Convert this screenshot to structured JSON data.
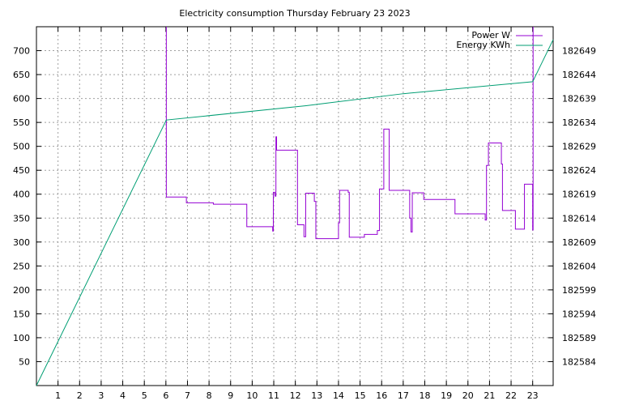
{
  "chart_data": {
    "type": "line",
    "title": "Electricity consumption Thursday February 23 2023",
    "xlim": [
      0,
      23.95
    ],
    "x_ticks": [
      "1",
      "2",
      "3",
      "4",
      "5",
      "6",
      "7",
      "8",
      "9",
      "10",
      "11",
      "12",
      "13",
      "14",
      "15",
      "16",
      "17",
      "18",
      "19",
      "20",
      "21",
      "22",
      "23"
    ],
    "y_left": {
      "lim": [
        0,
        750
      ],
      "ticks": [
        "50",
        "100",
        "150",
        "200",
        "250",
        "300",
        "350",
        "400",
        "450",
        "500",
        "550",
        "600",
        "650",
        "700"
      ]
    },
    "y_right": {
      "lim": [
        182579,
        182654
      ],
      "ticks": [
        "182584",
        "182589",
        "182594",
        "182599",
        "182604",
        "182609",
        "182614",
        "182619",
        "182624",
        "182629",
        "182634",
        "182639",
        "182644",
        "182649"
      ]
    },
    "grid": true,
    "legend": {
      "placement": "top-right",
      "entries": [
        "Power W",
        "Energy KWh"
      ]
    },
    "colors": {
      "power": "#9400d3",
      "energy": "#009e73",
      "grid": "#a0a0a0"
    },
    "series": [
      {
        "name": "Power W",
        "axis": "left",
        "points": [
          [
            6.02,
            750
          ],
          [
            6.02,
            394
          ],
          [
            6.95,
            394
          ],
          [
            6.95,
            382
          ],
          [
            8.2,
            382
          ],
          [
            8.2,
            379
          ],
          [
            9.75,
            379
          ],
          [
            9.75,
            332
          ],
          [
            10.95,
            332
          ],
          [
            10.95,
            323
          ],
          [
            10.98,
            323
          ],
          [
            10.98,
            404
          ],
          [
            11.05,
            404
          ],
          [
            11.05,
            396
          ],
          [
            11.1,
            396
          ],
          [
            11.1,
            520
          ],
          [
            11.13,
            520
          ],
          [
            11.13,
            492
          ],
          [
            12.1,
            492
          ],
          [
            12.1,
            336
          ],
          [
            12.4,
            336
          ],
          [
            12.4,
            311
          ],
          [
            12.48,
            311
          ],
          [
            12.48,
            402
          ],
          [
            12.88,
            402
          ],
          [
            12.88,
            385
          ],
          [
            12.95,
            385
          ],
          [
            12.95,
            307
          ],
          [
            14.0,
            307
          ],
          [
            14.0,
            340
          ],
          [
            14.05,
            340
          ],
          [
            14.05,
            408
          ],
          [
            14.45,
            408
          ],
          [
            14.45,
            404
          ],
          [
            14.5,
            404
          ],
          [
            14.5,
            310
          ],
          [
            15.2,
            310
          ],
          [
            15.2,
            316
          ],
          [
            15.8,
            316
          ],
          [
            15.8,
            324
          ],
          [
            15.9,
            324
          ],
          [
            15.9,
            411
          ],
          [
            16.1,
            411
          ],
          [
            16.1,
            536
          ],
          [
            16.35,
            536
          ],
          [
            16.35,
            408
          ],
          [
            17.3,
            408
          ],
          [
            17.3,
            350
          ],
          [
            17.36,
            350
          ],
          [
            17.36,
            321
          ],
          [
            17.42,
            321
          ],
          [
            17.42,
            403
          ],
          [
            17.95,
            403
          ],
          [
            17.95,
            389
          ],
          [
            19.4,
            389
          ],
          [
            19.4,
            359
          ],
          [
            20.8,
            359
          ],
          [
            20.8,
            346
          ],
          [
            20.86,
            346
          ],
          [
            20.86,
            460
          ],
          [
            20.95,
            460
          ],
          [
            20.95,
            507
          ],
          [
            21.55,
            507
          ],
          [
            21.55,
            463
          ],
          [
            21.6,
            463
          ],
          [
            21.6,
            366
          ],
          [
            22.2,
            366
          ],
          [
            22.2,
            327
          ],
          [
            22.62,
            327
          ],
          [
            22.62,
            421
          ],
          [
            23.0,
            421
          ],
          [
            23.0,
            325
          ],
          [
            23.02,
            325
          ],
          [
            23.02,
            750
          ]
        ]
      },
      {
        "name": "Energy KWh",
        "axis": "right",
        "points": [
          [
            0,
            182579
          ],
          [
            6.02,
            182634.5
          ],
          [
            12.5,
            182637.5
          ],
          [
            17.0,
            182640.0
          ],
          [
            23.0,
            182642.5
          ],
          [
            23.95,
            182651.3
          ]
        ]
      }
    ]
  }
}
